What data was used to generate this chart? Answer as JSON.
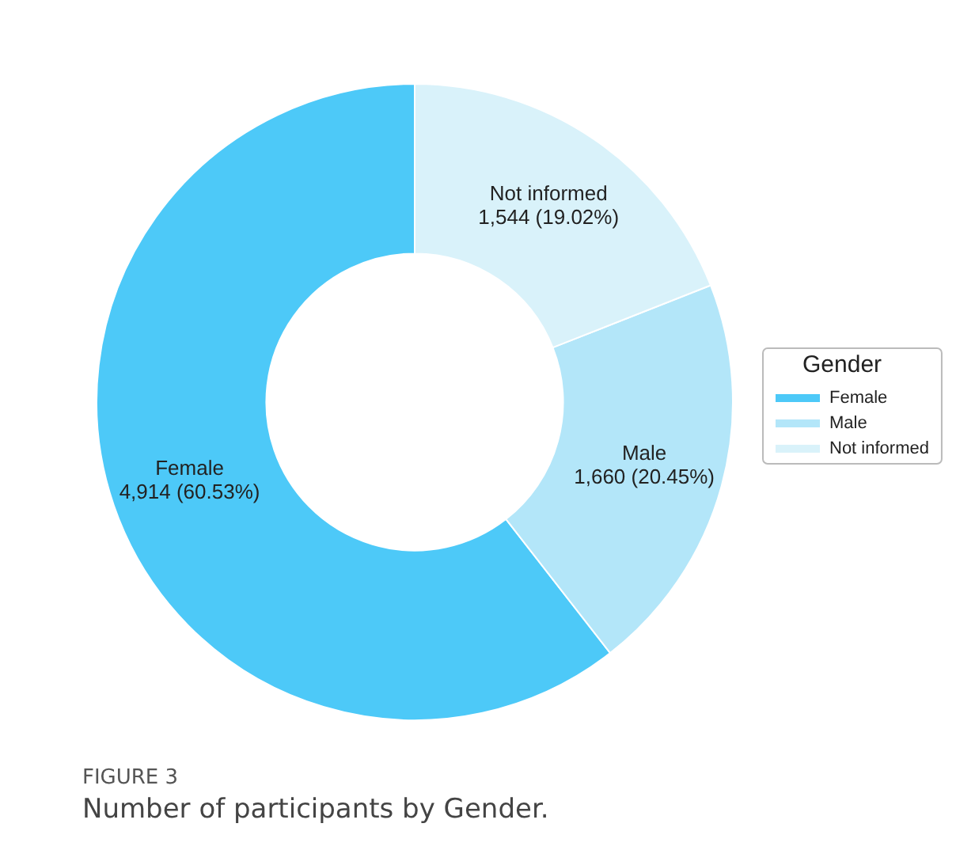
{
  "chart_data": {
    "type": "donut",
    "categories": [
      "Female",
      "Male",
      "Not informed"
    ],
    "values": [
      4914,
      1660,
      1544
    ],
    "colors": [
      "#4dc9f8",
      "#b3e6f9",
      "#d9f2fa"
    ],
    "value_labels": [
      "4,914 (60.53%)",
      "1,660 (20.45%)",
      "1,544 (19.02%)"
    ],
    "legend_title": "Gender",
    "legend": "right",
    "annotations": [
      "FIGURE 3",
      "Number of participants by Gender."
    ]
  }
}
